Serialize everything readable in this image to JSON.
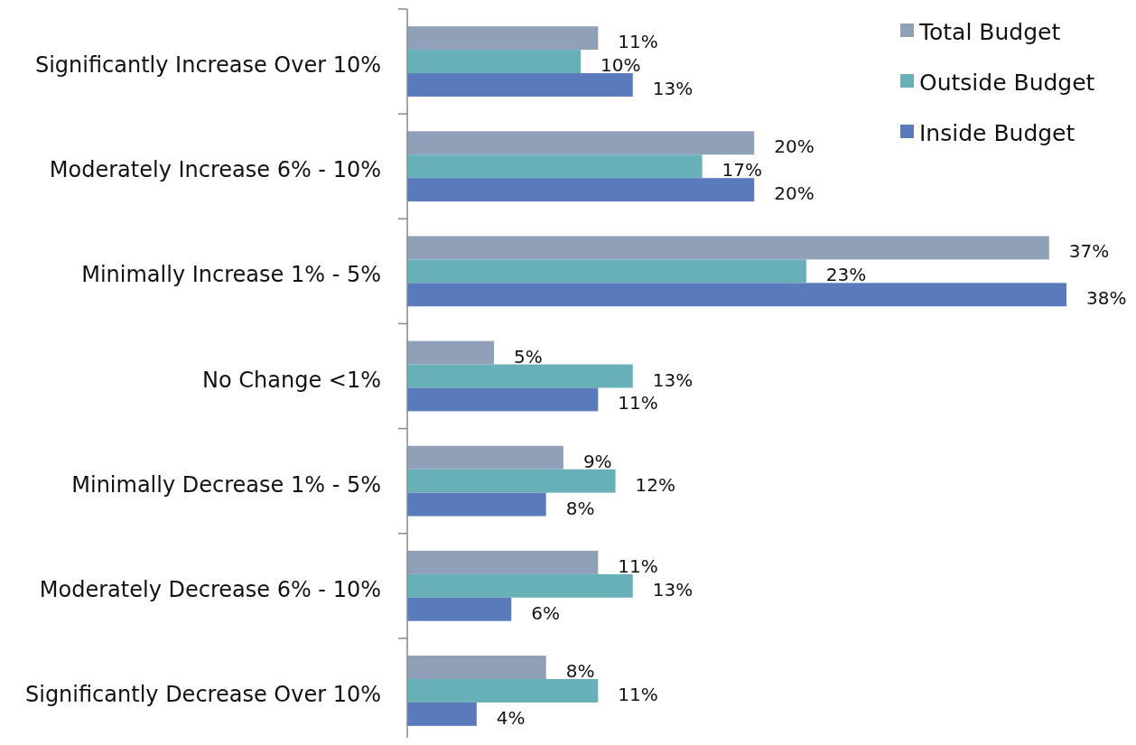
{
  "chart_data": {
    "type": "bar",
    "orientation": "horizontal",
    "legend": "top right",
    "categories": [
      "Significantly Increase Over 10%",
      "Moderately Increase 6% - 10%",
      "Minimally Increase 1% - 5%",
      "No Change <1%",
      "Minimally Decrease 1% - 5%",
      "Moderately Decrease 6% - 10%",
      "Significantly Decrease Over 10%"
    ],
    "series": [
      {
        "name": "Total Budget",
        "color": "#8fa0b8",
        "values": [
          11,
          20,
          37,
          5,
          9,
          11,
          8
        ],
        "value_labels": [
          "11%",
          "20%",
          "37%",
          "5%",
          "9%",
          "11%",
          "8%"
        ]
      },
      {
        "name": "Outside Budget",
        "color": "#68b0b8",
        "values": [
          10,
          17,
          23,
          13,
          12,
          13,
          11
        ],
        "value_labels": [
          "10%",
          "17%",
          "23%",
          "13%",
          "12%",
          "13%",
          "11%"
        ]
      },
      {
        "name": "Inside Budget",
        "color": "#5a7bbb",
        "values": [
          13,
          20,
          38,
          11,
          8,
          6,
          4
        ],
        "value_labels": [
          "13%",
          "20%",
          "38%",
          "11%",
          "8%",
          "6%",
          "4%"
        ]
      }
    ]
  }
}
